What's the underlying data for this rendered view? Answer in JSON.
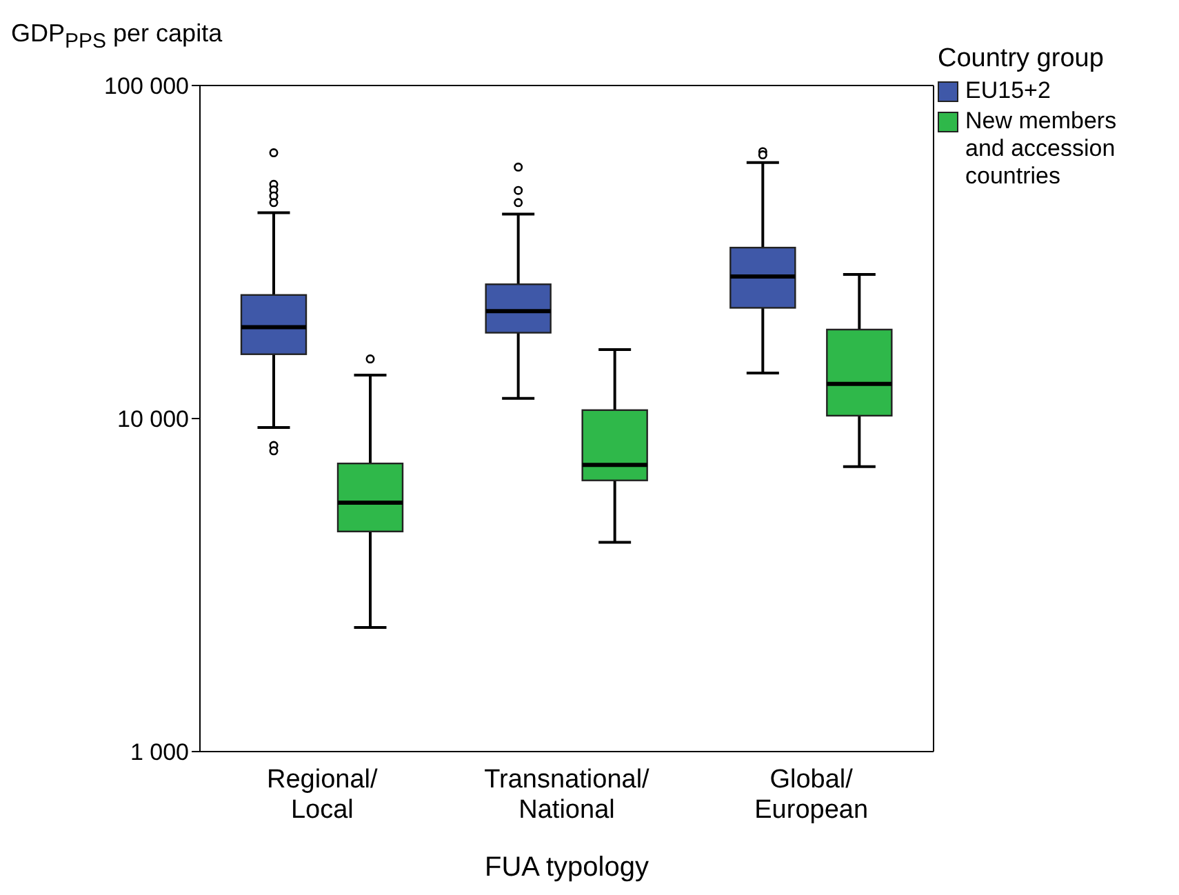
{
  "chart_data": {
    "type": "box",
    "ylabel": "GDP$_{PPS}$ per capita",
    "xlabel": "FUA typology",
    "legend_title": "Country group",
    "legend": "top right",
    "log": true,
    "ylim": [
      1000,
      100000
    ],
    "yticks": [
      {
        "value": 1000,
        "label": "1 000"
      },
      {
        "value": 10000,
        "label": "10 000"
      },
      {
        "value": 100000,
        "label": "100 000"
      }
    ],
    "categories": [
      "Regional/Local",
      "Transnational/National",
      "Global/European"
    ],
    "series": [
      {
        "name": "EU15+2",
        "color": "#3f58a8",
        "boxes": [
          {
            "low": 9400,
            "q1": 15600,
            "median": 18800,
            "q3": 23500,
            "high": 41500,
            "outliers": [
              62800,
              50500,
              48600,
              46600,
              44500,
              8300,
              8000
            ]
          },
          {
            "low": 11500,
            "q1": 18100,
            "median": 21000,
            "q3": 25300,
            "high": 41100,
            "outliers": [
              56900,
              48400,
              44500
            ]
          },
          {
            "low": 13700,
            "q1": 21500,
            "median": 26700,
            "q3": 32600,
            "high": 58700,
            "outliers": [
              63300,
              61900
            ]
          }
        ]
      },
      {
        "name": "New members and accession countries",
        "color": "#2fb84a",
        "boxes": [
          {
            "low": 2360,
            "q1": 4580,
            "median": 5590,
            "q3": 7330,
            "high": 13500,
            "outliers": [
              15100
            ]
          },
          {
            "low": 4250,
            "q1": 6520,
            "median": 7260,
            "q3": 10600,
            "high": 16100
          },
          {
            "low": 7170,
            "q1": 10200,
            "median": 12700,
            "q3": 18500,
            "high": 27100
          }
        ]
      }
    ]
  }
}
